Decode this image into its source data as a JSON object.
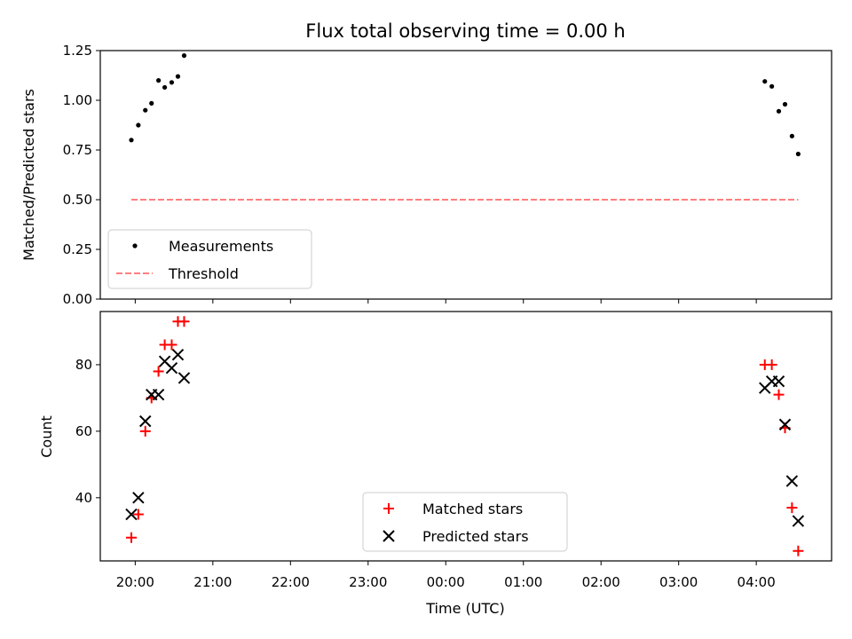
{
  "chart_data": [
    {
      "type": "scatter",
      "title": "Flux total observing time = 0.00 h",
      "ylabel": "Matched/Predicted stars",
      "xlabel": "",
      "xlim_hours": [
        19.55,
        28.97
      ],
      "ylim": [
        0,
        1.25
      ],
      "yticks": [
        "0.00",
        "0.25",
        "0.50",
        "0.75",
        "1.00",
        "1.25"
      ],
      "legend_position": "lower-left",
      "series": [
        {
          "name": "Measurements",
          "color": "#000000",
          "marker": "dot",
          "x_hours": [
            19.95,
            20.04,
            20.13,
            20.21,
            20.3,
            20.38,
            20.47,
            20.55,
            20.63,
            28.11,
            28.2,
            28.29,
            28.37,
            28.46,
            28.54
          ],
          "y": [
            0.8,
            0.875,
            0.95,
            0.985,
            1.1,
            1.065,
            1.09,
            1.12,
            1.225,
            1.095,
            1.07,
            0.945,
            0.98,
            0.82,
            0.73
          ]
        },
        {
          "name": "Threshold",
          "color": "#ff7f7f",
          "style": "dashed",
          "x_hours": [
            19.95,
            28.54
          ],
          "y": [
            0.5,
            0.5
          ]
        }
      ]
    },
    {
      "type": "scatter",
      "title": "",
      "ylabel": "Count",
      "xlabel": "Time (UTC)",
      "xlim_hours": [
        19.55,
        28.97
      ],
      "ylim": [
        21,
        96
      ],
      "yticks": [
        "40",
        "60",
        "80"
      ],
      "xticks": [
        "20:00",
        "21:00",
        "22:00",
        "23:00",
        "00:00",
        "01:00",
        "02:00",
        "03:00",
        "04:00"
      ],
      "legend_position": "lower-center",
      "series": [
        {
          "name": "Matched stars",
          "color": "#ff0000",
          "marker": "plus",
          "x_hours": [
            19.95,
            20.04,
            20.13,
            20.21,
            20.3,
            20.38,
            20.47,
            20.55,
            20.63,
            28.11,
            28.2,
            28.29,
            28.37,
            28.46,
            28.54
          ],
          "y": [
            28,
            35,
            60,
            70,
            78,
            86,
            86,
            93,
            93,
            80,
            80,
            71,
            61,
            37,
            24
          ]
        },
        {
          "name": "Predicted stars",
          "color": "#000000",
          "marker": "x",
          "x_hours": [
            19.95,
            20.04,
            20.13,
            20.21,
            20.3,
            20.38,
            20.47,
            20.55,
            20.63,
            28.11,
            28.2,
            28.29,
            28.37,
            28.46,
            28.54
          ],
          "y": [
            35,
            40,
            63,
            71,
            71,
            81,
            79,
            83,
            76,
            73,
            75,
            75,
            62,
            45,
            33
          ]
        }
      ]
    }
  ]
}
